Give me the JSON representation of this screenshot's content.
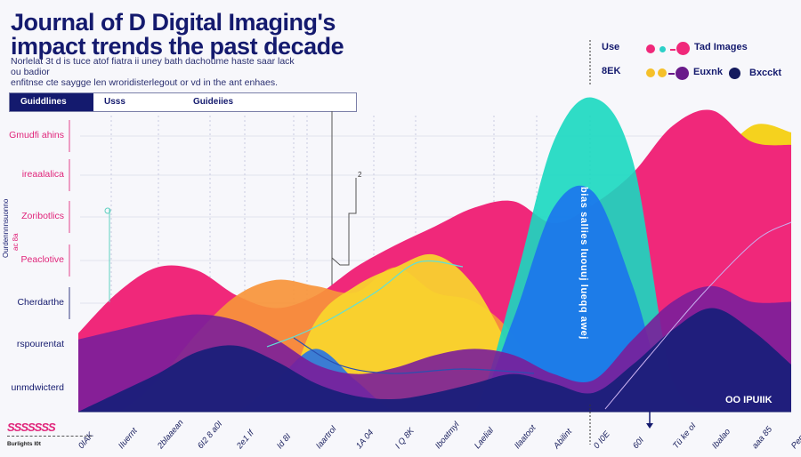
{
  "header": {
    "title_line1": "Journal of D Digital Imaging's",
    "title_line2": "impact trends the  past decade",
    "subtitle_line1": "Norlelat 3t d is tuce atof fiatra ii uney bath dachoume haste saar lack ou badior",
    "subtitle_line2": "enfitnse cte saygge len wroridisterlegout or vd in the ant enhaes."
  },
  "tabs": [
    {
      "label": "Guiddlines",
      "active": true
    },
    {
      "label": "Usss",
      "active": false
    },
    {
      "label": "Guideiies",
      "active": false
    }
  ],
  "legend": {
    "row1_label": "Use",
    "row2_label": "8EK",
    "items": [
      {
        "label": "Tad Images",
        "color": "#f0287a"
      },
      {
        "label": "Euxnk",
        "color": "#6a1b8a"
      },
      {
        "label": "Bxcckt",
        "color": "#141a5e"
      }
    ]
  },
  "annotations": {
    "peak_text": "bias sallies luouuj lueqq awej",
    "step_marker": "2",
    "watermark": "OO IPUIIK",
    "logo": "SSSSSSS",
    "logo_caption": "Burlights I0t"
  },
  "chart_data": {
    "type": "area",
    "title": "Journal of D Digital Imaging's impact trends the  past decade",
    "ylabel": "Ourdennnnsuonno",
    "ylabel_secondary": "ac 8a",
    "y_categories": [
      "Gmudfi ahins",
      "ireaalalica",
      "Zoribotlics",
      "Peaclotive",
      "Cherdarthe",
      "rspourentat",
      "unmdwicterd"
    ],
    "y_category_colors": [
      "#e0247a",
      "#e0247a",
      "#e0247a",
      "#e0247a",
      "#141a6e",
      "#141a6e",
      "#141a6e"
    ],
    "categories": [
      "0IAK",
      "IIuernt",
      "2blaaean",
      "6I2 8 a0I",
      "2e1 If",
      "Id 8I",
      "Iaartrol",
      "1A 04",
      "I Q 8K",
      "Iboatmyl",
      "Laelial",
      "Ilaatoot",
      "Abilint",
      "0 I0E",
      "60I",
      "Tü ke oI",
      "Ibalao",
      "aaa 85",
      "Pepoly"
    ],
    "ylim": [
      0,
      100
    ],
    "grid": true,
    "legend_position": "top-right",
    "series": [
      {
        "color": "#f5d21e",
        "values": [
          0,
          0,
          0,
          0,
          0,
          0,
          0,
          0,
          0,
          0,
          0,
          0,
          0,
          0,
          0,
          40,
          75,
          91,
          89
        ]
      },
      {
        "color": "#f0287a",
        "values": [
          25,
          38,
          46,
          45,
          37,
          33,
          37,
          46,
          53,
          59,
          65,
          67,
          60,
          66,
          76,
          91,
          96,
          86,
          85
        ]
      },
      {
        "color": "#f7943a",
        "values": [
          0,
          0,
          10,
          25,
          37,
          42,
          40,
          38,
          46,
          38,
          35,
          24,
          0,
          0,
          0,
          0,
          0,
          0,
          0
        ]
      },
      {
        "color": "#f9d62c",
        "values": [
          0,
          0,
          0,
          0,
          0,
          0,
          29,
          40,
          46,
          50,
          40,
          18,
          0,
          0,
          0,
          0,
          0,
          0,
          0
        ]
      },
      {
        "color": "#18d8c0",
        "values": [
          0,
          0,
          0,
          0,
          0,
          0,
          0,
          0,
          0,
          0,
          0,
          40,
          86,
          100,
          80,
          10,
          0,
          0,
          0
        ]
      },
      {
        "color": "#1a6ef0",
        "values": [
          0,
          0,
          0,
          0,
          0,
          10,
          20,
          10,
          0,
          0,
          0,
          30,
          65,
          70,
          40,
          0,
          0,
          0,
          0
        ]
      },
      {
        "color": "#7a1e9a",
        "values": [
          23,
          26,
          29,
          31,
          29,
          23,
          15,
          12,
          14,
          18,
          20,
          18,
          12,
          10,
          23,
          35,
          40,
          35,
          35
        ]
      },
      {
        "color": "#1a1f7a",
        "values": [
          0,
          6,
          12,
          19,
          21,
          16,
          9,
          5,
          4,
          6,
          9,
          12,
          9,
          6,
          15,
          26,
          33,
          26,
          15
        ]
      }
    ]
  }
}
